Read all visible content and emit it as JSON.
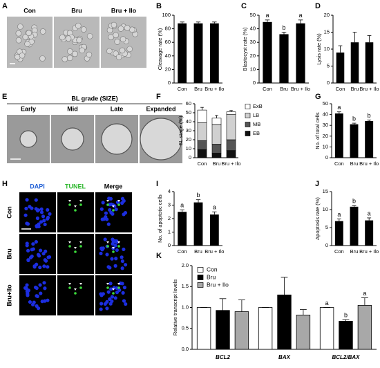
{
  "images": [
    {
      "panel": "A",
      "labels": [
        "Con",
        "Bru",
        "Bru + Ilo"
      ]
    },
    {
      "panel": "E",
      "title": "BL grade (SIZE)",
      "labels": [
        "Early",
        "Mid",
        "Late",
        "Expanded"
      ]
    },
    {
      "panel": "H",
      "columns": [
        "DAPI",
        "TUNEL",
        "Merge"
      ],
      "column_colors": [
        "#1f5fd6",
        "#2eb82e",
        "#000000"
      ],
      "rows": [
        "Con",
        "Bru",
        "Bru+Ilo"
      ]
    }
  ],
  "chart_data": [
    {
      "panel": "B",
      "type": "bar",
      "y_label": "Cleavage rate (%)",
      "categories": [
        "Con",
        "Bru",
        "Bru + Ilo"
      ],
      "values": [
        88,
        88,
        88
      ],
      "errors": [
        2,
        2,
        2
      ],
      "color": "#000000",
      "ylim": [
        0,
        100
      ],
      "yticks": [
        0,
        20,
        40,
        60,
        80,
        100
      ]
    },
    {
      "panel": "C",
      "type": "bar",
      "y_label": "Blastocyst rate (%)",
      "categories": [
        "Con",
        "Bru",
        "Bru + Ilo"
      ],
      "values": [
        45,
        36,
        44
      ],
      "errors": [
        1.5,
        1.5,
        2.5
      ],
      "letters": [
        "a",
        "b",
        "a"
      ],
      "color": "#000000",
      "ylim": [
        0,
        50
      ],
      "yticks": [
        0,
        10,
        20,
        30,
        40,
        50
      ]
    },
    {
      "panel": "D",
      "type": "bar",
      "y_label": "Lysis rate (%)",
      "categories": [
        "Con",
        "Bru",
        "Bru + Ilo"
      ],
      "values": [
        9,
        12,
        12
      ],
      "errors": [
        2,
        3,
        2
      ],
      "color": "#000000",
      "ylim": [
        0,
        20
      ],
      "yticks": [
        0,
        5,
        10,
        15,
        20
      ]
    },
    {
      "panel": "F",
      "type": "stacked_bar",
      "y_label": "BL stage (%)",
      "categories": [
        "Con",
        "Bru",
        "Bru + Ilo"
      ],
      "series": [
        {
          "name": "EB",
          "color": "#111111",
          "values": [
            9,
            5,
            8
          ],
          "errors": [
            2,
            1.5,
            2
          ]
        },
        {
          "name": "MB",
          "color": "#555555",
          "values": [
            10,
            10,
            12
          ],
          "errors": [
            2,
            2,
            2
          ]
        },
        {
          "name": "LB",
          "color": "#d0d0d0",
          "values": [
            20,
            22,
            28
          ],
          "errors": [
            2,
            2,
            2
          ]
        },
        {
          "name": "ExB",
          "color": "#ffffff",
          "values": [
            14,
            7,
            3
          ],
          "errors": [
            3,
            3,
            1.5
          ]
        }
      ],
      "ylim": [
        0,
        60
      ],
      "yticks": [
        0,
        10,
        20,
        30,
        40,
        50,
        60
      ]
    },
    {
      "panel": "G",
      "type": "bar",
      "y_label": "No. of total cells",
      "categories": [
        "Con",
        "Bru",
        "Bru + Ilo"
      ],
      "values": [
        41,
        31,
        34
      ],
      "errors": [
        1.5,
        1,
        1
      ],
      "letters": [
        "a",
        "b",
        "b"
      ],
      "color": "#000000",
      "ylim": [
        0,
        50
      ],
      "yticks": [
        0,
        10,
        20,
        30,
        40,
        50
      ]
    },
    {
      "panel": "I",
      "type": "bar",
      "y_label": "No. of apoptotic cells",
      "categories": [
        "Con",
        "Bru",
        "Bru + Ilo"
      ],
      "values": [
        2.5,
        3.2,
        2.3
      ],
      "errors": [
        0.15,
        0.2,
        0.2
      ],
      "letters": [
        "a",
        "b",
        "a"
      ],
      "color": "#000000",
      "ylim": [
        0,
        4
      ],
      "yticks": [
        0,
        1,
        2,
        3,
        4
      ]
    },
    {
      "panel": "J",
      "type": "bar",
      "y_label": "Apoptosis rate (%)",
      "categories": [
        "Con",
        "Bru",
        "Bru + Ilo"
      ],
      "values": [
        6.8,
        10.8,
        7
      ],
      "errors": [
        0.6,
        0.3,
        0.7
      ],
      "letters": [
        "a",
        "b",
        "a"
      ],
      "color": "#000000",
      "ylim": [
        0,
        15
      ],
      "yticks": [
        0,
        5,
        10,
        15
      ]
    },
    {
      "panel": "K",
      "type": "grouped_bar",
      "y_label": "Relative transcript levels",
      "categories": [
        "BCL2",
        "BAX",
        "BCL2/BAX"
      ],
      "series": [
        {
          "name": "Con",
          "color": "#ffffff",
          "values": [
            1,
            1,
            1
          ],
          "errors": [
            0,
            0,
            0
          ],
          "letters": [
            null,
            null,
            "a"
          ]
        },
        {
          "name": "Bru",
          "color": "#000000",
          "values": [
            0.93,
            1.3,
            0.67
          ],
          "errors": [
            0.28,
            0.42,
            0.04
          ],
          "letters": [
            null,
            null,
            "b"
          ]
        },
        {
          "name": "Bru + Ilo",
          "color": "#a8a8a8",
          "values": [
            0.9,
            0.82,
            1.05
          ],
          "errors": [
            0.28,
            0.13,
            0.18
          ],
          "letters": [
            null,
            null,
            "a"
          ]
        }
      ],
      "ylim": [
        0,
        2
      ],
      "yticks": [
        {
          "value": 0,
          "label": "0.0"
        },
        0.5,
        {
          "value": 1,
          "label": "1.0"
        },
        1.5,
        {
          "value": 2,
          "label": "2.0"
        }
      ]
    }
  ]
}
